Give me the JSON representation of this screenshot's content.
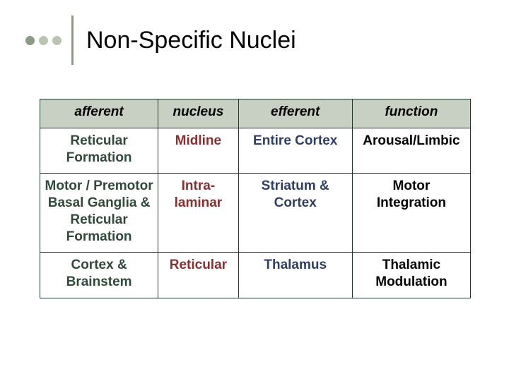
{
  "slide": {
    "title": "Non-Specific Nuclei",
    "dot_colors": [
      "#8b9a83",
      "#b9c4b3",
      "#b9c4b3"
    ],
    "vline_color": "#8b9a83",
    "title_color": "#000000"
  },
  "table": {
    "border_color": "#1f3b2e",
    "header_bg": "#c7d0c2",
    "columns": [
      {
        "key": "afferent",
        "label": "afferent",
        "color": "#2f4a3a"
      },
      {
        "key": "nucleus",
        "label": "nucleus",
        "color": "#8a2f2f"
      },
      {
        "key": "efferent",
        "label": "efferent",
        "color": "#2e3f66"
      },
      {
        "key": "function",
        "label": "function",
        "color": "#000000"
      }
    ],
    "col_widths_pct": [
      28,
      19,
      27,
      28
    ],
    "header_fontsize": 19,
    "cell_fontsize": 19,
    "rows": [
      {
        "afferent": "Reticular Formation",
        "nucleus": "Midline",
        "efferent": "Entire Cortex",
        "function": "Arousal/Limbic"
      },
      {
        "afferent": "Motor / Premotor Basal Ganglia & Reticular Formation",
        "nucleus": "Intra-laminar",
        "efferent": "Striatum & Cortex",
        "function": "Motor Integration"
      },
      {
        "afferent": "Cortex & Brainstem",
        "nucleus": "Reticular",
        "efferent": "Thalamus",
        "function": "Thalamic Modulation"
      }
    ]
  }
}
